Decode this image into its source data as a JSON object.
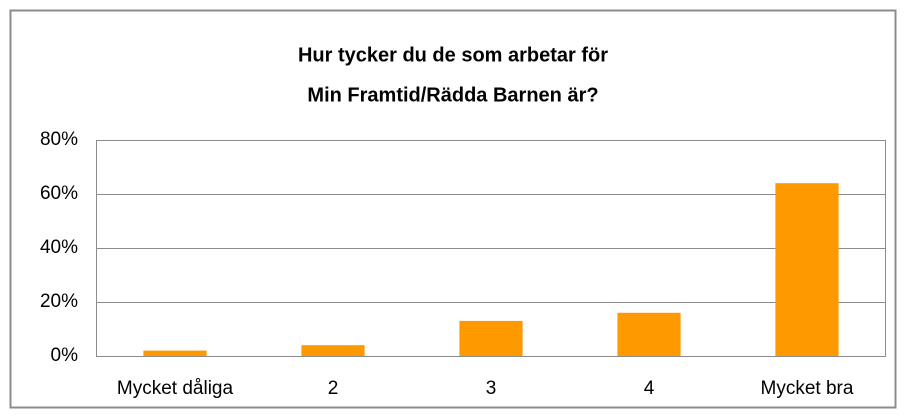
{
  "chart_data": {
    "type": "bar",
    "title": [
      "Hur tycker du de som arbetar för",
      "Min Framtid/Rädda Barnen är?"
    ],
    "categories": [
      "Mycket dåliga",
      "2",
      "3",
      "4",
      "Mycket bra"
    ],
    "values": [
      2,
      4,
      13,
      16,
      64
    ],
    "color": "#ff9900",
    "ylim": [
      0,
      80
    ],
    "yticks": [
      {
        "value": 0,
        "label": "0%"
      },
      {
        "value": 20,
        "label": "20%"
      },
      {
        "value": 40,
        "label": "40%"
      },
      {
        "value": 60,
        "label": "60%"
      },
      {
        "value": 80,
        "label": "80%"
      }
    ],
    "grid": true
  }
}
